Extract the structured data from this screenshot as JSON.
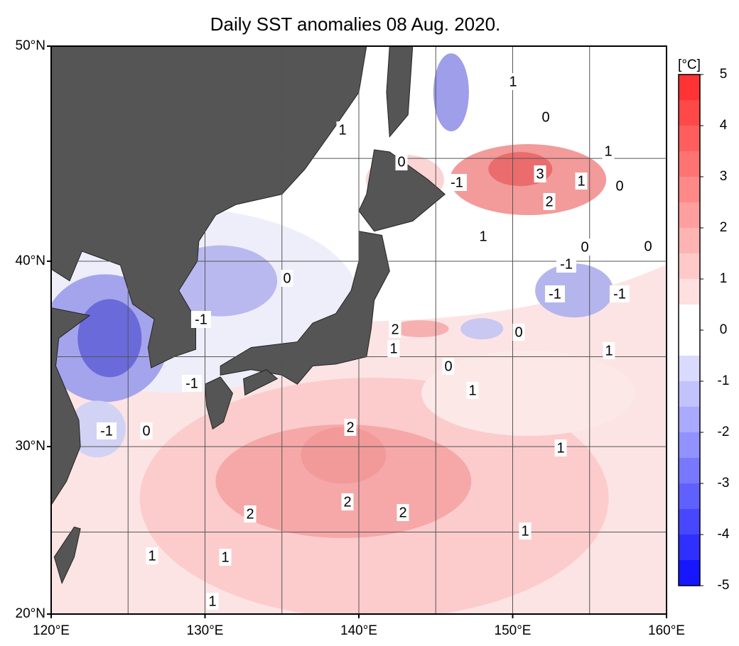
{
  "title": "Daily SST anomalies 08 Aug. 2020.",
  "unit": "[°C]",
  "lon_ticks": [
    {
      "value": 120,
      "label": "120°E"
    },
    {
      "value": 130,
      "label": "130°E"
    },
    {
      "value": 140,
      "label": "140°E"
    },
    {
      "value": 150,
      "label": "150°E"
    },
    {
      "value": 160,
      "label": "160°E"
    }
  ],
  "lat_ticks": [
    {
      "value": 20,
      "label": "20°N"
    },
    {
      "value": 30,
      "label": "30°N"
    },
    {
      "value": 40,
      "label": "40°N"
    },
    {
      "value": 50,
      "label": "50°N"
    }
  ],
  "lon_grid": [
    120,
    125,
    130,
    135,
    140,
    145,
    150,
    155,
    160
  ],
  "lat_grid": [
    20,
    25,
    30,
    35,
    40,
    45,
    50
  ],
  "colorbar": {
    "lim": [
      -5,
      5
    ],
    "ticks": [
      -5,
      -4,
      -3,
      -2,
      -1,
      0,
      1,
      2,
      3,
      4,
      5
    ]
  },
  "contour_labels": [
    1,
    0,
    1,
    1,
    0,
    3,
    -1,
    1,
    0,
    2,
    1,
    0,
    0,
    -1,
    0,
    -1,
    -1,
    -1,
    2,
    0,
    1,
    1,
    0,
    -1,
    1,
    -1,
    0,
    2,
    1,
    2,
    2,
    2,
    1,
    1,
    1,
    1
  ]
}
